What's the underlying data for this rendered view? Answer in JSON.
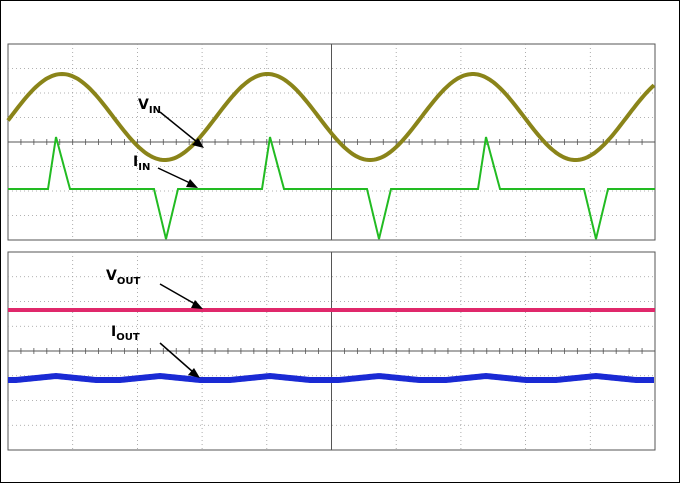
{
  "chart_data": [
    {
      "type": "line",
      "title": "",
      "panel": "top",
      "series": [
        {
          "name": "V",
          "subscript": "IN",
          "color": "#8a8419",
          "waveform": "sine",
          "cycles_in_window": 3.15
        },
        {
          "name": "I",
          "subscript": "IN",
          "color": "#22bb22",
          "waveform": "pulses_at_zero_crossings"
        }
      ]
    },
    {
      "type": "line",
      "title": "",
      "panel": "bottom",
      "series": [
        {
          "name": "V",
          "subscript": "OUT",
          "color": "#e0286b",
          "waveform": "flat"
        },
        {
          "name": "I",
          "subscript": "OUT",
          "color": "#1a2ad4",
          "waveform": "flat_with_ripple"
        }
      ]
    }
  ],
  "grid": true,
  "labels": {
    "vin": {
      "main": "V",
      "sub": "IN"
    },
    "iin": {
      "main": "I",
      "sub": "IN"
    },
    "vout": {
      "main": "V",
      "sub": "OUT"
    },
    "iout": {
      "main": "I",
      "sub": "OUT"
    }
  }
}
